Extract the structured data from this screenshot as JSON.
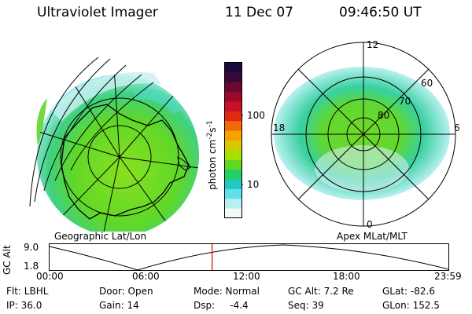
{
  "header": {
    "instrument": "Ultraviolet Imager",
    "date": "11 Dec 07",
    "time": "09:46:50 UT"
  },
  "colorbar": {
    "label": "photon cm",
    "label_sup1": "-2",
    "label_s": "s",
    "label_sup2": "-1",
    "ticks": [
      "100",
      "10"
    ],
    "colors": [
      "#1a0a3a",
      "#3a0838",
      "#6a0830",
      "#9a0a28",
      "#c8102a",
      "#e02a14",
      "#f06a08",
      "#f8a000",
      "#d8c800",
      "#a8e000",
      "#60d820",
      "#20d060",
      "#20c8c0",
      "#60e0e8",
      "#b8f0f0",
      "#f4f8f8"
    ]
  },
  "left_panel": {
    "caption": "Geographic Lat/Lon"
  },
  "right_panel": {
    "caption": "Apex MLat/MLT",
    "mlt_labels": {
      "top": "12",
      "left": "18",
      "right": "6",
      "bottom": "0"
    },
    "lat_labels": [
      "60",
      "70",
      "80"
    ]
  },
  "timeline": {
    "ylabel": "GC Alt",
    "y_ticks": [
      "9.0",
      "1.8"
    ],
    "x_ticks": [
      "00:00",
      "06:00",
      "12:00",
      "18:00",
      "23:59"
    ],
    "current_time_fraction": 0.4075,
    "marker_color": "#e00000"
  },
  "info": {
    "row1": [
      "Flt: LBHL",
      "Door: Open",
      "Mode: Normal",
      "GC Alt: 7.2 Re",
      "GLat: -82.6"
    ],
    "row2": [
      "IP: 36.0",
      "Gain: 14",
      "Dsp:     -4.4",
      "Seq: 39",
      "GLon: 152.5"
    ]
  }
}
